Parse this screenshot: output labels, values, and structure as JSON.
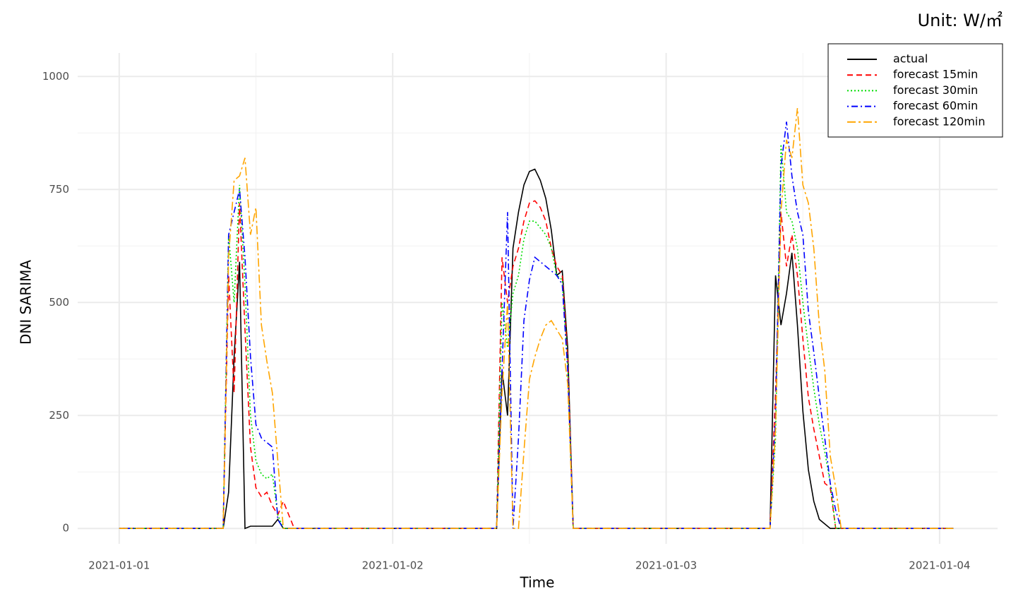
{
  "chart_data": {
    "type": "line",
    "unit_note": "Unit: W/㎡",
    "x_label": "Time",
    "y_label": "DNI SARIMA",
    "x": [
      0,
      0.38,
      0.4,
      0.42,
      0.44,
      0.46,
      0.48,
      0.5,
      0.52,
      0.54,
      0.56,
      0.58,
      0.6,
      0.62,
      0.64,
      0.66,
      1.38,
      1.4,
      1.42,
      1.44,
      1.46,
      1.48,
      1.5,
      1.52,
      1.54,
      1.56,
      1.58,
      1.6,
      1.62,
      1.64,
      1.66,
      1.68,
      2.38,
      2.4,
      2.42,
      2.44,
      2.46,
      2.48,
      2.5,
      2.52,
      2.54,
      2.56,
      2.58,
      2.6,
      2.62,
      2.64,
      2.66,
      2.68,
      3.05
    ],
    "series": [
      {
        "name": "actual",
        "color": "#000000",
        "dash": "solid",
        "values": [
          0,
          0,
          80,
          380,
          590,
          0,
          5,
          5,
          5,
          5,
          5,
          20,
          0,
          0,
          0,
          0,
          0,
          350,
          250,
          620,
          700,
          760,
          790,
          795,
          770,
          730,
          660,
          560,
          570,
          400,
          0,
          0,
          0,
          560,
          450,
          520,
          610,
          450,
          260,
          130,
          60,
          20,
          10,
          0,
          0,
          0,
          0,
          0,
          0
        ]
      },
      {
        "name": "forecast 15min",
        "color": "#ff0000",
        "dash": "dashed",
        "values": [
          0,
          0,
          560,
          300,
          720,
          440,
          180,
          90,
          70,
          80,
          50,
          30,
          60,
          30,
          0,
          0,
          0,
          600,
          500,
          580,
          620,
          680,
          720,
          725,
          710,
          680,
          620,
          580,
          560,
          380,
          0,
          0,
          0,
          300,
          700,
          580,
          650,
          560,
          420,
          290,
          220,
          160,
          100,
          90,
          0,
          0,
          0,
          0,
          0
        ]
      },
      {
        "name": "forecast 30min",
        "color": "#00dd00",
        "dash": "dotted",
        "values": [
          0,
          0,
          650,
          500,
          760,
          540,
          250,
          150,
          120,
          110,
          120,
          30,
          0,
          0,
          0,
          0,
          0,
          500,
          400,
          520,
          560,
          640,
          680,
          680,
          665,
          650,
          620,
          560,
          550,
          360,
          0,
          0,
          0,
          200,
          850,
          700,
          680,
          620,
          500,
          400,
          310,
          230,
          170,
          100,
          0,
          0,
          0,
          0,
          0
        ]
      },
      {
        "name": "forecast 60min",
        "color": "#0000ff",
        "dash": "dotdash",
        "values": [
          0,
          0,
          650,
          700,
          750,
          600,
          380,
          230,
          200,
          190,
          180,
          20,
          0,
          0,
          0,
          0,
          0,
          350,
          700,
          0,
          200,
          460,
          550,
          600,
          590,
          580,
          570,
          560,
          540,
          350,
          0,
          0,
          0,
          250,
          800,
          900,
          780,
          700,
          650,
          480,
          390,
          290,
          200,
          100,
          40,
          0,
          0,
          0,
          0
        ]
      },
      {
        "name": "forecast 120min",
        "color": "#ffa500",
        "dash": "longdash",
        "values": [
          0,
          0,
          600,
          770,
          780,
          820,
          650,
          710,
          450,
          370,
          300,
          150,
          0,
          0,
          0,
          0,
          0,
          300,
          500,
          0,
          0,
          170,
          330,
          380,
          420,
          450,
          460,
          440,
          420,
          320,
          0,
          0,
          0,
          220,
          700,
          860,
          820,
          930,
          760,
          720,
          620,
          450,
          350,
          160,
          90,
          0,
          0,
          0,
          0
        ]
      }
    ],
    "xlim": [
      -0.152,
      3.212
    ],
    "xticks": [
      {
        "value": 0,
        "label": "2021-01-01"
      },
      {
        "value": 1,
        "label": "2021-01-02"
      },
      {
        "value": 2,
        "label": "2021-01-03"
      },
      {
        "value": 3,
        "label": "2021-01-04"
      }
    ],
    "x_minor_grid": [
      0.5,
      1.5,
      2.5
    ],
    "ylim": [
      -34,
      1052
    ],
    "yticks": [
      0,
      250,
      500,
      750,
      1000
    ],
    "y_minor_grid": [
      125,
      375,
      625,
      875
    ],
    "grid": true,
    "legend": "top-right"
  }
}
